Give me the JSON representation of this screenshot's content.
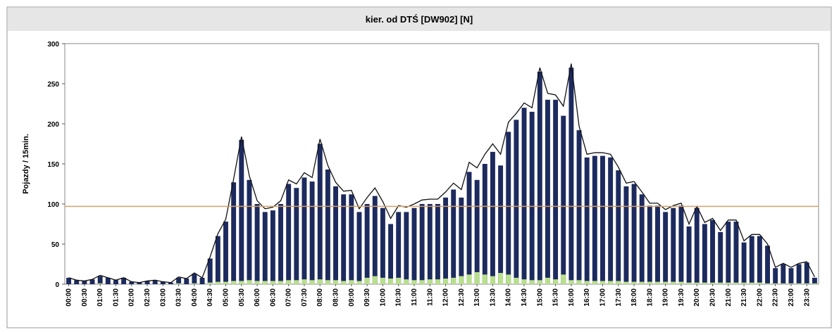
{
  "chart_data": {
    "type": "bar",
    "title": "kier. od DTŚ [DW902] [N]",
    "y_label": "Pojazdy / 15min.",
    "categories": [
      "00:00",
      null,
      "00:30",
      null,
      "01:00",
      null,
      "01:30",
      null,
      "02:00",
      null,
      "02:30",
      null,
      "03:00",
      null,
      "03:30",
      null,
      "04:00",
      null,
      "04:30",
      null,
      "05:00",
      null,
      "05:30",
      null,
      "06:00",
      null,
      "06:30",
      null,
      "07:00",
      null,
      "07:30",
      null,
      "08:00",
      null,
      "08:30",
      null,
      "09:00",
      null,
      "09:30",
      null,
      "10:00",
      null,
      "10:30",
      null,
      "11:00",
      null,
      "11:30",
      null,
      "12:00",
      null,
      "12:30",
      null,
      "13:00",
      null,
      "13:30",
      null,
      "14:00",
      null,
      "14:30",
      null,
      "15:00",
      null,
      "15:30",
      null,
      "16:00",
      null,
      "16:30",
      null,
      "17:00",
      null,
      "17:30",
      null,
      "18:00",
      null,
      "18:30",
      null,
      "19:00",
      null,
      "19:30",
      null,
      "20:00",
      null,
      "20:30",
      null,
      "21:00",
      null,
      "21:30",
      null,
      "22:00",
      null,
      "22:30",
      null,
      "23:00",
      null,
      "23:30",
      null
    ],
    "series": [
      {
        "type": "bar",
        "color": "#1c2a5e",
        "values": [
          8,
          5,
          4,
          6,
          10,
          8,
          5,
          8,
          3,
          2,
          4,
          5,
          3,
          2,
          8,
          7,
          13,
          8,
          32,
          60,
          78,
          127,
          180,
          130,
          100,
          90,
          92,
          100,
          125,
          120,
          133,
          128,
          175,
          143,
          122,
          112,
          112,
          90,
          100,
          110,
          95,
          75,
          90,
          90,
          95,
          100,
          100,
          100,
          108,
          118,
          108,
          140,
          130,
          150,
          165,
          148,
          190,
          205,
          220,
          215,
          265,
          230,
          230,
          210,
          270,
          192,
          158,
          160,
          160,
          158,
          142,
          122,
          125,
          112,
          98,
          98,
          90,
          95,
          98,
          72,
          95,
          75,
          80,
          65,
          78,
          78,
          52,
          60,
          60,
          48,
          20,
          25,
          20,
          25,
          27,
          8
        ]
      },
      {
        "type": "bar",
        "color": "#b8e08c",
        "values": [
          0,
          0,
          0,
          0,
          1,
          0,
          0,
          0,
          0,
          0,
          0,
          0,
          0,
          0,
          1,
          0,
          1,
          0,
          2,
          3,
          3,
          4,
          4,
          5,
          4,
          4,
          4,
          4,
          5,
          5,
          6,
          5,
          6,
          5,
          5,
          4,
          5,
          4,
          8,
          10,
          8,
          7,
          8,
          6,
          5,
          5,
          6,
          6,
          7,
          8,
          10,
          12,
          15,
          12,
          10,
          14,
          12,
          8,
          6,
          5,
          5,
          8,
          6,
          12,
          5,
          5,
          4,
          4,
          4,
          4,
          4,
          3,
          3,
          3,
          3,
          3,
          3,
          3,
          3,
          2,
          2,
          2,
          2,
          2,
          2,
          2,
          2,
          2,
          2,
          1,
          1,
          1,
          1,
          1,
          1,
          1
        ]
      },
      {
        "type": "line",
        "color": "#111111",
        "values": [
          8,
          5,
          4,
          6,
          11,
          8,
          5,
          8,
          3,
          2,
          4,
          5,
          3,
          2,
          9,
          7,
          14,
          8,
          34,
          63,
          81,
          131,
          184,
          135,
          104,
          94,
          96,
          104,
          130,
          125,
          139,
          133,
          181,
          148,
          127,
          116,
          117,
          94,
          108,
          120,
          103,
          82,
          98,
          96,
          100,
          105,
          106,
          106,
          115,
          126,
          118,
          152,
          145,
          162,
          175,
          162,
          202,
          213,
          226,
          220,
          270,
          238,
          236,
          222,
          275,
          197,
          162,
          164,
          164,
          162,
          146,
          126,
          128,
          115,
          101,
          101,
          93,
          98,
          101,
          75,
          97,
          77,
          82,
          67,
          80,
          80,
          54,
          62,
          62,
          50,
          21,
          26,
          21,
          26,
          28,
          9
        ]
      }
    ],
    "reference_line": {
      "value": 97,
      "color": "#d9a066"
    },
    "ylim": [
      0,
      300
    ],
    "yticks": [
      0,
      50,
      100,
      150,
      200,
      250,
      300
    ]
  }
}
